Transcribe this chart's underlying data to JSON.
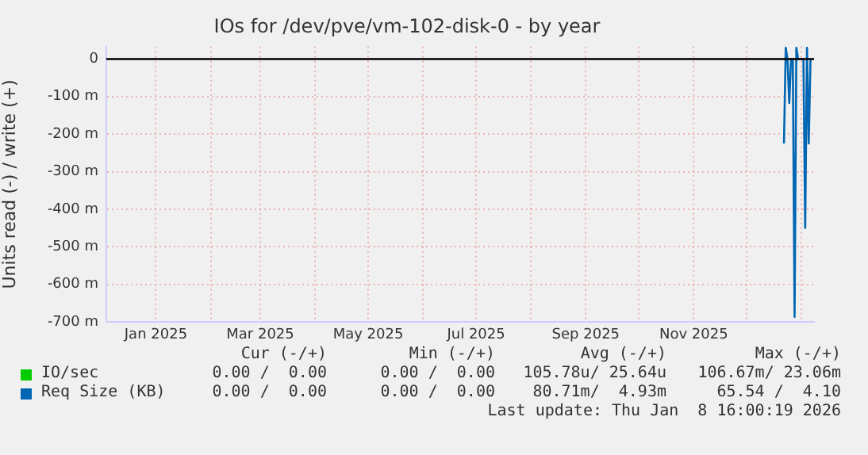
{
  "chart_data": {
    "type": "line",
    "title": "IOs for /dev/pve/vm-102-disk-0 - by year",
    "ylabel": "Units read (-) / write (+)",
    "xlim": [
      "2024-12-04",
      "2026-01-08"
    ],
    "xticks": [
      {
        "value": "2025-01-01",
        "label": "Jan 2025"
      },
      {
        "value": "2025-02-01",
        "label": null
      },
      {
        "value": "2025-03-01",
        "label": "Mar 2025"
      },
      {
        "value": "2025-04-01",
        "label": null
      },
      {
        "value": "2025-05-01",
        "label": "May 2025"
      },
      {
        "value": "2025-06-01",
        "label": null
      },
      {
        "value": "2025-07-01",
        "label": "Jul 2025"
      },
      {
        "value": "2025-08-01",
        "label": null
      },
      {
        "value": "2025-09-01",
        "label": "Sep 2025"
      },
      {
        "value": "2025-10-01",
        "label": null
      },
      {
        "value": "2025-11-01",
        "label": "Nov 2025"
      },
      {
        "value": "2025-12-01",
        "label": null
      },
      {
        "value": "2026-01-01",
        "label": null
      }
    ],
    "ylim": [
      -700,
      33
    ],
    "yticks": [
      0,
      {
        "value": -100,
        "label": "-100 m"
      },
      {
        "value": -200,
        "label": "-200 m"
      },
      {
        "value": -300,
        "label": "-300 m"
      },
      {
        "value": -400,
        "label": "-400 m"
      },
      {
        "value": -500,
        "label": "-500 m"
      },
      {
        "value": -600,
        "label": "-600 m"
      },
      {
        "value": -700,
        "label": "-700 m"
      }
    ],
    "grid": true,
    "legend": "bottom left",
    "marker": "none",
    "line_style": "solid",
    "series": [
      {
        "name": "IO/sec",
        "color": "#00cc00"
      },
      {
        "name": "Req Size (KB)",
        "color": "#0066b3",
        "x": [
          "2025-12-22",
          "2025-12-23",
          "2025-12-24",
          "2025-12-25",
          "2025-12-26",
          "2025-12-27",
          "2025-12-28",
          "2025-12-29",
          "2025-12-30",
          "2026-01-02",
          "2026-01-03",
          "2026-01-04",
          "2026-01-05",
          "2026-01-06"
        ],
        "values": [
          -225,
          30,
          0,
          -117,
          0,
          0,
          -687,
          30,
          0,
          0,
          -450,
          30,
          -225,
          0
        ]
      }
    ],
    "ref_lines": [
      {
        "axis": "y",
        "value": 0,
        "color": "#000000"
      }
    ],
    "annotations": [
      "Cur (-/+)",
      "Min (-/+)",
      "Avg (-/+)",
      "Max (-/+)",
      "0.00 /  0.00",
      "0.00 /  0.00",
      "105.78u/ 25.64u",
      "106.67m/ 23.06m",
      "0.00 /  0.00",
      "0.00 /  0.00",
      "80.71m/  4.93m",
      "65.54 /  4.10",
      "Last update: Thu Jan  8 16:00:19 2026"
    ]
  }
}
